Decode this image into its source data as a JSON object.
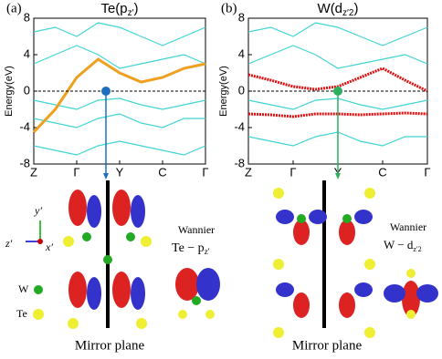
{
  "chart_data": [
    {
      "type": "line",
      "panel": "(a)",
      "title": {
        "text": "Te(p",
        "sub": "z′",
        "close": ")"
      },
      "ylabel": "Energy(eV)",
      "categories": [
        "Z",
        null,
        "Γ",
        null,
        "Y",
        null,
        "C",
        null,
        "Γ"
      ],
      "ylim": [
        -8,
        8
      ],
      "yticks": [
        -8,
        -4,
        0,
        4,
        8
      ],
      "series": [
        {
          "color": "#40d4d4",
          "values": [
            6.5,
            7,
            6,
            7.5,
            7,
            6,
            5,
            6,
            7
          ]
        },
        {
          "color": "#40d4d4",
          "values": [
            3,
            4,
            5,
            4,
            2.5,
            3,
            3.5,
            4,
            3
          ]
        },
        {
          "color": "#40d4d4",
          "values": [
            -1,
            -1.5,
            -2,
            -1,
            -0.8,
            -1.5,
            -2,
            -1.5,
            -1
          ]
        },
        {
          "color": "#40d4d4",
          "values": [
            -3,
            -3.5,
            -4,
            -3,
            -2.5,
            -3.5,
            -4,
            -3,
            -3
          ]
        },
        {
          "color": "#40d4d4",
          "values": [
            -6,
            -6.5,
            -7,
            -6,
            -5.5,
            -6,
            -6.5,
            -7,
            -6
          ]
        },
        {
          "color": "#f0a020",
          "values": [
            -4.5,
            -2,
            1.5,
            3.5,
            2,
            1,
            1.5,
            2.5,
            3
          ]
        }
      ]
    },
    {
      "type": "line",
      "panel": "(b)",
      "title": {
        "text": "W(d",
        "sub": "z′2",
        "close": ")"
      },
      "ylabel": "Energy(eV)",
      "categories": [
        "Z",
        null,
        "Γ",
        null,
        "Y",
        null,
        "C",
        null,
        "Γ"
      ],
      "ylim": [
        -8,
        8
      ],
      "yticks": [
        -8,
        -4,
        0,
        4,
        8
      ],
      "series": [
        {
          "color": "#40d4d4",
          "values": [
            6.5,
            7,
            6,
            7.5,
            7,
            6,
            5,
            6,
            7
          ]
        },
        {
          "color": "#40d4d4",
          "values": [
            3,
            4,
            5,
            4,
            2.5,
            3,
            3.5,
            4,
            3
          ]
        },
        {
          "color": "#40d4d4",
          "values": [
            -1,
            -1.5,
            -2,
            -1,
            -0.8,
            -1.5,
            -2,
            -1.5,
            -1
          ]
        },
        {
          "color": "#40d4d4",
          "values": [
            -5,
            -5.5,
            -6,
            -5,
            -4.5,
            -5.5,
            -6,
            -5,
            -5
          ]
        },
        {
          "color": "#e01010",
          "values": [
            1.8,
            1.2,
            0.5,
            0.2,
            0.5,
            1.5,
            2.5,
            1.2,
            0
          ]
        },
        {
          "color": "#e01010",
          "values": [
            -2.5,
            -2.6,
            -2.8,
            -2.5,
            -2.5,
            -2.6,
            -2.5,
            -2.4,
            -2.5
          ]
        }
      ]
    }
  ],
  "labels": {
    "mirror": "Mirror plane",
    "wannier": "Wannier",
    "left_orbital": "Te − p",
    "left_sub": "z′",
    "right_orbital": "W − d",
    "right_sub": "z′2",
    "w": "W",
    "te": "Te",
    "y": "y′",
    "z": "z′",
    "x": "x′"
  }
}
